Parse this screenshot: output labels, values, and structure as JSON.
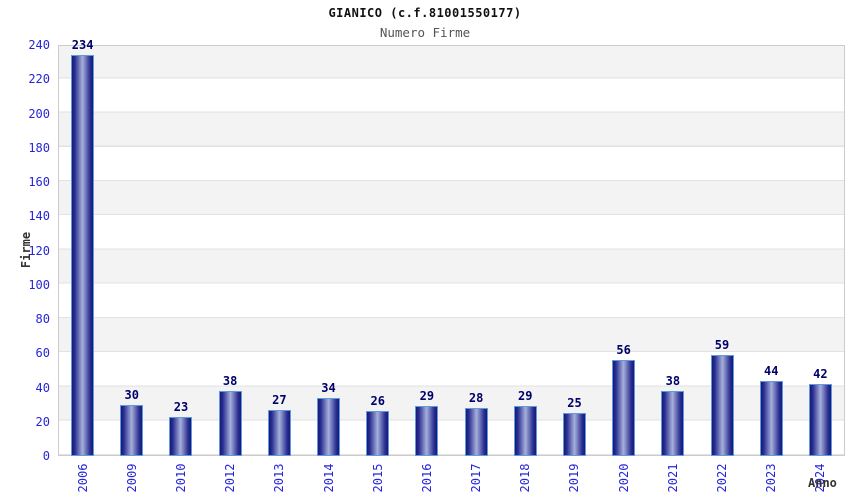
{
  "chart_data": {
    "type": "bar",
    "title": "GIANICO (c.f.81001550177)",
    "subtitle": "Numero Firme",
    "xlabel": "Anno",
    "ylabel": "Firme",
    "categories": [
      "2006",
      "2009",
      "2010",
      "2012",
      "2013",
      "2014",
      "2015",
      "2016",
      "2017",
      "2018",
      "2019",
      "2020",
      "2021",
      "2022",
      "2023",
      "2024"
    ],
    "values": [
      234,
      30,
      23,
      38,
      27,
      34,
      26,
      29,
      28,
      29,
      25,
      56,
      38,
      59,
      44,
      42
    ],
    "ylim": [
      0,
      240
    ],
    "yticks": [
      0,
      20,
      40,
      60,
      80,
      100,
      120,
      140,
      160,
      180,
      200,
      220,
      240
    ],
    "grid": "horizontal-bands-alternating",
    "legend_position": "none",
    "bar_value_labels_shown": true,
    "x_tick_rotation_deg": -90
  },
  "colors": {
    "bar_edge": "#191975",
    "bar_mid2": "#2b2f93",
    "bar_mid": "#a7b0da",
    "bar_border": "#5b9ce0",
    "value_label": "#00006b",
    "tick_label": "#2626d8",
    "stripe": "#f3f3f3",
    "grid_line": "#e2e2e2",
    "plot_border": "#cccccc",
    "subtitle": "#555555",
    "axis_title": "#333333"
  }
}
